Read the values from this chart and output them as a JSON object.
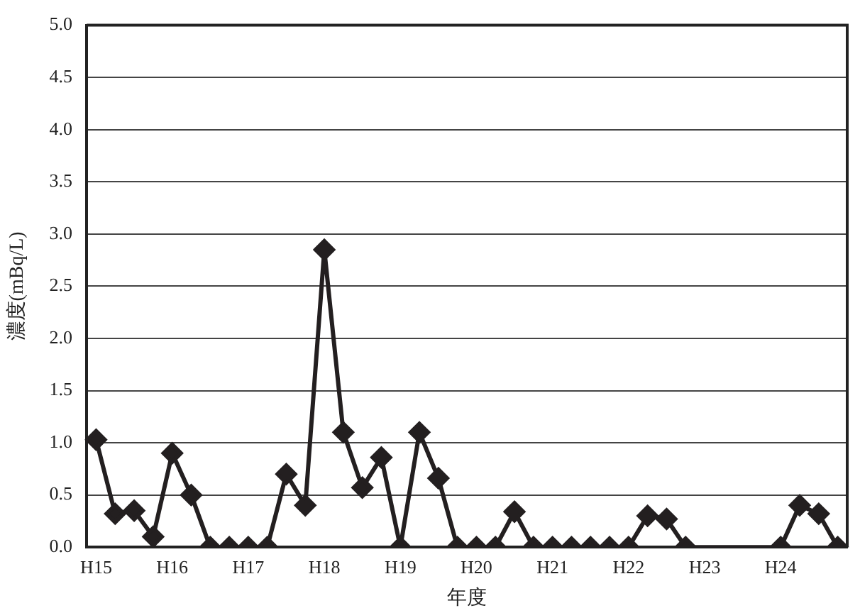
{
  "chart_data": {
    "type": "line",
    "xlabel": "年度",
    "ylabel": "濃度(mBq/L)",
    "categories": [
      "H15",
      null,
      null,
      null,
      "H16",
      null,
      null,
      null,
      "H17",
      null,
      null,
      null,
      "H18",
      null,
      null,
      null,
      "H19",
      null,
      null,
      null,
      "H20",
      null,
      null,
      null,
      "H21",
      null,
      null,
      null,
      "H22",
      null,
      null,
      null,
      "H23",
      null,
      null,
      null,
      "H24",
      null,
      null,
      null
    ],
    "series": [
      {
        "color": "#231f20",
        "values": [
          1.03,
          0.32,
          0.35,
          0.1,
          0.9,
          0.5,
          0,
          0,
          0,
          0,
          0.7,
          0.4,
          2.85,
          1.1,
          0.57,
          0.86,
          0,
          1.1,
          0.66,
          0,
          0,
          0,
          0.34,
          0,
          0,
          0,
          0,
          0,
          0,
          0.3,
          0.27,
          0,
          null,
          null,
          null,
          null,
          0,
          0.4,
          0.32,
          0
        ]
      }
    ],
    "ylim": [
      0,
      5
    ],
    "yticks": [
      {
        "value": 0,
        "label": "0.0"
      },
      {
        "value": 0.5,
        "label": "0.5"
      },
      {
        "value": 1,
        "label": "1.0"
      },
      {
        "value": 1.5,
        "label": "1.5"
      },
      {
        "value": 2,
        "label": "2.0"
      },
      {
        "value": 2.5,
        "label": "2.5"
      },
      {
        "value": 3,
        "label": "3.0"
      },
      {
        "value": 3.5,
        "label": "3.5"
      },
      {
        "value": 4,
        "label": "4.0"
      },
      {
        "value": 4.5,
        "label": "4.5"
      },
      {
        "value": 5,
        "label": "5.0"
      }
    ],
    "grid": "y",
    "legend": false,
    "marker": "diamond",
    "line_style": "solid"
  }
}
